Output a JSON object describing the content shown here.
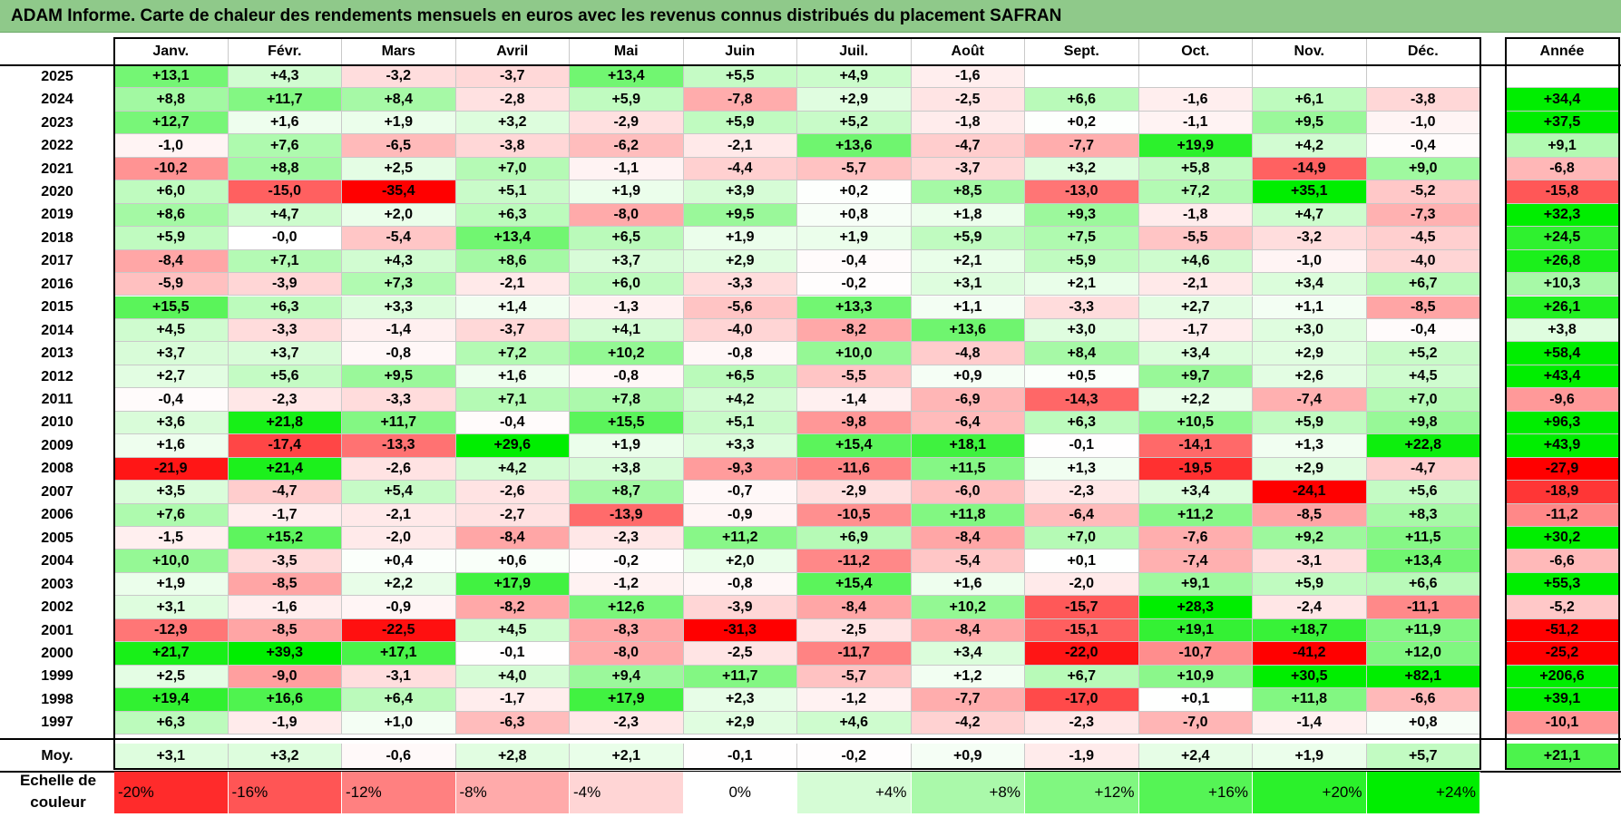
{
  "title": "ADAM Informe. Carte de chaleur des rendements mensuels en euros avec les revenus connus distribués du placement SAFRAN",
  "chart_data": {
    "type": "heatmap",
    "months": [
      "Janv.",
      "Févr.",
      "Mars",
      "Avril",
      "Mai",
      "Juin",
      "Juil.",
      "Août",
      "Sept.",
      "Oct.",
      "Nov.",
      "Déc."
    ],
    "year_header": "Année",
    "rows": [
      {
        "label": "2025",
        "values": [
          "+13,1",
          "+4,3",
          "-3,2",
          "-3,7",
          "+13,4",
          "+5,5",
          "+4,9",
          "-1,6",
          "",
          "",
          "",
          ""
        ],
        "year": ""
      },
      {
        "label": "2024",
        "values": [
          "+8,8",
          "+11,7",
          "+8,4",
          "-2,8",
          "+5,9",
          "-7,8",
          "+2,9",
          "-2,5",
          "+6,6",
          "-1,6",
          "+6,1",
          "-3,8"
        ],
        "year": "+34,4"
      },
      {
        "label": "2023",
        "values": [
          "+12,7",
          "+1,6",
          "+1,9",
          "+3,2",
          "-2,9",
          "+5,9",
          "+5,2",
          "-1,8",
          "+0,2",
          "-1,1",
          "+9,5",
          "-1,0"
        ],
        "year": "+37,5"
      },
      {
        "label": "2022",
        "values": [
          "-1,0",
          "+7,6",
          "-6,5",
          "-3,8",
          "-6,2",
          "-2,1",
          "+13,6",
          "-4,7",
          "-7,7",
          "+19,9",
          "+4,2",
          "-0,4"
        ],
        "year": "+9,1"
      },
      {
        "label": "2021",
        "values": [
          "-10,2",
          "+8,8",
          "+2,5",
          "+7,0",
          "-1,1",
          "-4,4",
          "-5,7",
          "-3,7",
          "+3,2",
          "+5,8",
          "-14,9",
          "+9,0"
        ],
        "year": "-6,8"
      },
      {
        "label": "2020",
        "values": [
          "+6,0",
          "-15,0",
          "-35,4",
          "+5,1",
          "+1,9",
          "+3,9",
          "+0,2",
          "+8,5",
          "-13,0",
          "+7,2",
          "+35,1",
          "-5,2"
        ],
        "year": "-15,8"
      },
      {
        "label": "2019",
        "values": [
          "+8,6",
          "+4,7",
          "+2,0",
          "+6,3",
          "-8,0",
          "+9,5",
          "+0,8",
          "+1,8",
          "+9,3",
          "-1,8",
          "+4,7",
          "-7,3"
        ],
        "year": "+32,3"
      },
      {
        "label": "2018",
        "values": [
          "+5,9",
          "-0,0",
          "-5,4",
          "+13,4",
          "+6,5",
          "+1,9",
          "+1,9",
          "+5,9",
          "+7,5",
          "-5,5",
          "-3,2",
          "-4,5"
        ],
        "year": "+24,5"
      },
      {
        "label": "2017",
        "values": [
          "-8,4",
          "+7,1",
          "+4,3",
          "+8,6",
          "+3,7",
          "+2,9",
          "-0,4",
          "+2,1",
          "+5,9",
          "+4,6",
          "-1,0",
          "-4,0"
        ],
        "year": "+26,8"
      },
      {
        "label": "2016",
        "values": [
          "-5,9",
          "-3,9",
          "+7,3",
          "-2,1",
          "+6,0",
          "-3,3",
          "-0,2",
          "+3,1",
          "+2,1",
          "-2,1",
          "+3,4",
          "+6,7"
        ],
        "year": "+10,3"
      },
      {
        "label": "2015",
        "values": [
          "+15,5",
          "+6,3",
          "+3,3",
          "+1,4",
          "-1,3",
          "-5,6",
          "+13,3",
          "+1,1",
          "-3,3",
          "+2,7",
          "+1,1",
          "-8,5"
        ],
        "year": "+26,1"
      },
      {
        "label": "2014",
        "values": [
          "+4,5",
          "-3,3",
          "-1,4",
          "-3,7",
          "+4,1",
          "-4,0",
          "-8,2",
          "+13,6",
          "+3,0",
          "-1,7",
          "+3,0",
          "-0,4"
        ],
        "year": "+3,8"
      },
      {
        "label": "2013",
        "values": [
          "+3,7",
          "+3,7",
          "-0,8",
          "+7,2",
          "+10,2",
          "-0,8",
          "+10,0",
          "-4,8",
          "+8,4",
          "+3,4",
          "+2,9",
          "+5,2"
        ],
        "year": "+58,4"
      },
      {
        "label": "2012",
        "values": [
          "+2,7",
          "+5,6",
          "+9,5",
          "+1,6",
          "-0,8",
          "+6,5",
          "-5,5",
          "+0,9",
          "+0,5",
          "+9,7",
          "+2,6",
          "+4,5"
        ],
        "year": "+43,4"
      },
      {
        "label": "2011",
        "values": [
          "-0,4",
          "-2,3",
          "-3,3",
          "+7,1",
          "+7,8",
          "+4,2",
          "-1,4",
          "-6,9",
          "-14,3",
          "+2,2",
          "-7,4",
          "+7,0"
        ],
        "year": "-9,6"
      },
      {
        "label": "2010",
        "values": [
          "+3,6",
          "+21,8",
          "+11,7",
          "-0,4",
          "+15,5",
          "+5,1",
          "-9,8",
          "-6,4",
          "+6,3",
          "+10,5",
          "+5,9",
          "+9,8"
        ],
        "year": "+96,3"
      },
      {
        "label": "2009",
        "values": [
          "+1,6",
          "-17,4",
          "-13,3",
          "+29,6",
          "+1,9",
          "+3,3",
          "+15,4",
          "+18,1",
          "-0,1",
          "-14,1",
          "+1,3",
          "+22,8"
        ],
        "year": "+43,9"
      },
      {
        "label": "2008",
        "values": [
          "-21,9",
          "+21,4",
          "-2,6",
          "+4,2",
          "+3,8",
          "-9,3",
          "-11,6",
          "+11,5",
          "+1,3",
          "-19,5",
          "+2,9",
          "-4,7"
        ],
        "year": "-27,9"
      },
      {
        "label": "2007",
        "values": [
          "+3,5",
          "-4,7",
          "+5,4",
          "-2,6",
          "+8,7",
          "-0,7",
          "-2,9",
          "-6,0",
          "-2,3",
          "+3,4",
          "-24,1",
          "+5,6"
        ],
        "year": "-18,9"
      },
      {
        "label": "2006",
        "values": [
          "+7,6",
          "-1,7",
          "-2,1",
          "-2,7",
          "-13,9",
          "-0,9",
          "-10,5",
          "+11,8",
          "-6,4",
          "+11,2",
          "-8,5",
          "+8,3"
        ],
        "year": "-11,2"
      },
      {
        "label": "2005",
        "values": [
          "-1,5",
          "+15,2",
          "-2,0",
          "-8,4",
          "-2,3",
          "+11,2",
          "+6,9",
          "-8,4",
          "+7,0",
          "-7,6",
          "+9,2",
          "+11,5"
        ],
        "year": "+30,2"
      },
      {
        "label": "2004",
        "values": [
          "+10,0",
          "-3,5",
          "+0,4",
          "+0,6",
          "-0,2",
          "+2,0",
          "-11,2",
          "-5,4",
          "+0,1",
          "-7,4",
          "-3,1",
          "+13,4"
        ],
        "year": "-6,6"
      },
      {
        "label": "2003",
        "values": [
          "+1,9",
          "-8,5",
          "+2,2",
          "+17,9",
          "-1,2",
          "-0,8",
          "+15,4",
          "+1,6",
          "-2,0",
          "+9,1",
          "+5,9",
          "+6,6"
        ],
        "year": "+55,3"
      },
      {
        "label": "2002",
        "values": [
          "+3,1",
          "-1,6",
          "-0,9",
          "-8,2",
          "+12,6",
          "-3,9",
          "-8,4",
          "+10,2",
          "-15,7",
          "+28,3",
          "-2,4",
          "-11,1"
        ],
        "year": "-5,2"
      },
      {
        "label": "2001",
        "values": [
          "-12,9",
          "-8,5",
          "-22,5",
          "+4,5",
          "-8,3",
          "-31,3",
          "-2,5",
          "-8,4",
          "-15,1",
          "+19,1",
          "+18,7",
          "+11,9"
        ],
        "year": "-51,2"
      },
      {
        "label": "2000",
        "values": [
          "+21,7",
          "+39,3",
          "+17,1",
          "-0,1",
          "-8,0",
          "-2,5",
          "-11,7",
          "+3,4",
          "-22,0",
          "-10,7",
          "-41,2",
          "+12,0"
        ],
        "year": "-25,2"
      },
      {
        "label": "1999",
        "values": [
          "+2,5",
          "-9,0",
          "-3,1",
          "+4,0",
          "+9,4",
          "+11,7",
          "-5,7",
          "+1,2",
          "+6,7",
          "+10,9",
          "+30,5",
          "+82,1"
        ],
        "year": "+206,6"
      },
      {
        "label": "1998",
        "values": [
          "+19,4",
          "+16,6",
          "+6,4",
          "-1,7",
          "+17,9",
          "+2,3",
          "-1,2",
          "-7,7",
          "-17,0",
          "+0,1",
          "+11,8",
          "-6,6"
        ],
        "year": "+39,1"
      },
      {
        "label": "1997",
        "values": [
          "+6,3",
          "-1,9",
          "+1,0",
          "-6,3",
          "-2,3",
          "+2,9",
          "+4,6",
          "-4,2",
          "-2,3",
          "-7,0",
          "-1,4",
          "+0,8"
        ],
        "year": "-10,1"
      }
    ],
    "average": {
      "label": "Moy.",
      "values": [
        "+3,1",
        "+3,2",
        "-0,6",
        "+2,8",
        "+2,1",
        "-0,1",
        "-0,2",
        "+0,9",
        "-1,9",
        "+2,4",
        "+1,9",
        "+5,7"
      ],
      "year": "+21,1"
    },
    "scale": {
      "label_line1": "Echelle de",
      "label_line2": "couleur",
      "steps": [
        "-20%",
        "-16%",
        "-12%",
        "-8%",
        "-4%",
        "0%",
        "+4%",
        "+8%",
        "+12%",
        "+16%",
        "+20%",
        "+24%"
      ]
    }
  }
}
